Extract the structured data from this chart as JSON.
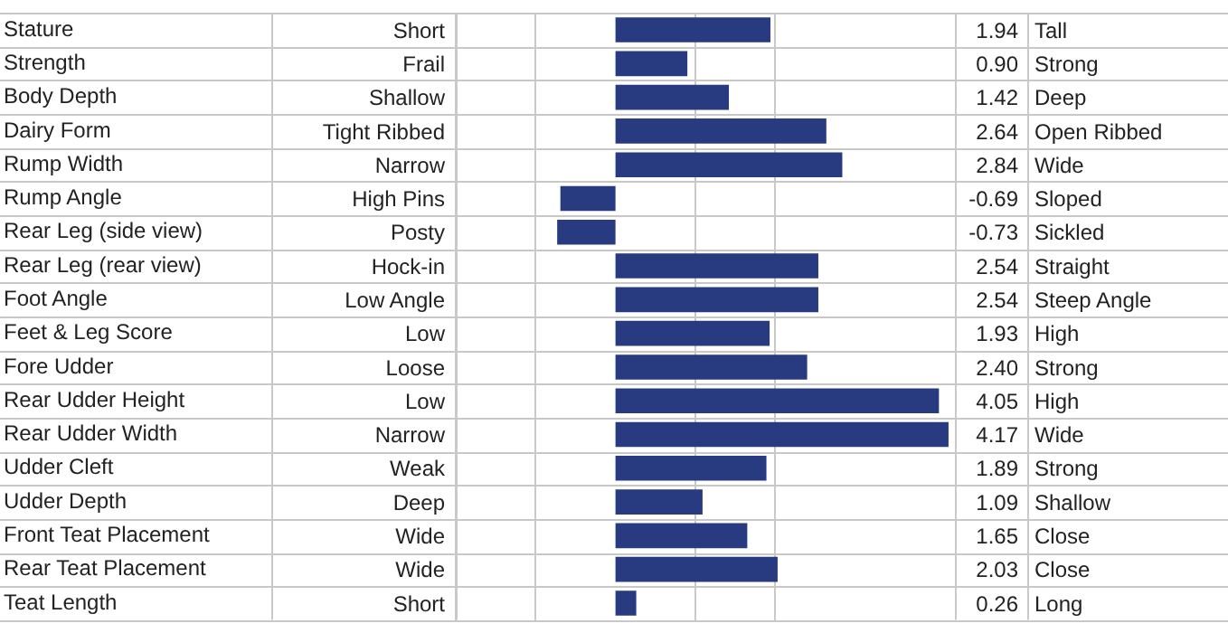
{
  "chart_data": {
    "type": "bar",
    "orientation": "horizontal",
    "categories": [
      "Stature",
      "Strength",
      "Body Depth",
      "Dairy Form",
      "Rump Width",
      "Rump Angle",
      "Rear Leg (side view)",
      "Rear Leg (rear view)",
      "Foot Angle",
      "Feet & Leg Score",
      "Fore Udder",
      "Rear Udder Height",
      "Rear Udder Width",
      "Udder Cleft",
      "Udder Depth",
      "Front Teat Placement",
      "Rear Teat Placement",
      "Teat Length"
    ],
    "values": [
      1.94,
      0.9,
      1.42,
      2.64,
      2.84,
      -0.69,
      -0.73,
      2.54,
      2.54,
      1.93,
      2.4,
      4.05,
      4.17,
      1.89,
      1.09,
      1.65,
      2.03,
      0.26
    ],
    "value_labels": [
      "1.94",
      "0.90",
      "1.42",
      "2.64",
      "2.84",
      "-0.69",
      "-0.73",
      "2.54",
      "2.54",
      "1.93",
      "2.40",
      "4.05",
      "4.17",
      "1.89",
      "1.09",
      "1.65",
      "2.03",
      "0.26"
    ],
    "color": "#283a80",
    "xlim": [
      -2,
      4.25
    ],
    "xticks": [
      {
        "value": -2,
        "label": null
      },
      {
        "value": -1,
        "label": null
      },
      {
        "value": 1,
        "label": null
      },
      {
        "value": 2,
        "label": null
      }
    ],
    "tick_labels": "y",
    "grid": "x",
    "legend": false,
    "annotations": [
      "Short",
      "Frail",
      "Shallow",
      "Tight Ribbed",
      "Narrow",
      "High Pins",
      "Posty",
      "Hock-in",
      "Low Angle",
      "Low",
      "Loose",
      "Low",
      "Narrow",
      "Weak",
      "Deep",
      "Wide",
      "Wide",
      "Short",
      "Tall",
      "Strong",
      "Deep",
      "Open Ribbed",
      "Wide",
      "Sloped",
      "Sickled",
      "Straight",
      "Steep Angle",
      "High",
      "Strong",
      "High",
      "Wide",
      "Strong",
      "Shallow",
      "Close",
      "Close",
      "Long"
    ]
  }
}
